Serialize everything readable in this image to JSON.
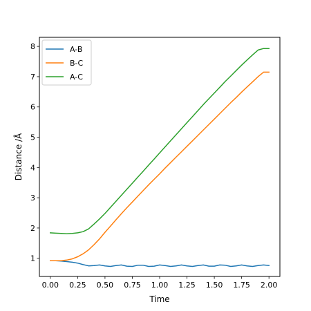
{
  "chart_data": {
    "type": "line",
    "title": "",
    "xlabel": "Time",
    "ylabel": "Distance /Å",
    "xlim": [
      -0.1,
      2.1
    ],
    "ylim": [
      0.4,
      8.3
    ],
    "xticks": [
      0.0,
      0.25,
      0.5,
      0.75,
      1.0,
      1.25,
      1.5,
      1.75,
      2.0
    ],
    "xtick_labels": [
      "0.00",
      "0.25",
      "0.50",
      "0.75",
      "1.00",
      "1.25",
      "1.50",
      "1.75",
      "2.00"
    ],
    "yticks": [
      1,
      2,
      3,
      4,
      5,
      6,
      7,
      8
    ],
    "ytick_labels": [
      "1",
      "2",
      "3",
      "4",
      "5",
      "6",
      "7",
      "8"
    ],
    "grid": false,
    "legend_position": "top-left",
    "series": [
      {
        "name": "A-B",
        "color": "#1f77b4",
        "x": [
          0,
          0.05,
          0.1,
          0.15,
          0.2,
          0.25,
          0.3,
          0.35,
          0.4,
          0.45,
          0.5,
          0.55,
          0.6,
          0.65,
          0.7,
          0.75,
          0.8,
          0.85,
          0.9,
          0.95,
          1.0,
          1.05,
          1.1,
          1.15,
          1.2,
          1.25,
          1.3,
          1.35,
          1.4,
          1.45,
          1.5,
          1.55,
          1.6,
          1.65,
          1.7,
          1.75,
          1.8,
          1.85,
          1.9,
          1.95,
          2.0
        ],
        "y": [
          0.92,
          0.92,
          0.91,
          0.89,
          0.87,
          0.84,
          0.79,
          0.75,
          0.76,
          0.78,
          0.75,
          0.73,
          0.76,
          0.78,
          0.74,
          0.73,
          0.77,
          0.77,
          0.73,
          0.74,
          0.78,
          0.76,
          0.73,
          0.75,
          0.78,
          0.75,
          0.73,
          0.76,
          0.78,
          0.74,
          0.74,
          0.78,
          0.77,
          0.73,
          0.75,
          0.78,
          0.75,
          0.73,
          0.76,
          0.78,
          0.76
        ]
      },
      {
        "name": "B-C",
        "color": "#ff7f0e",
        "x": [
          0,
          0.05,
          0.1,
          0.15,
          0.2,
          0.25,
          0.3,
          0.35,
          0.4,
          0.45,
          0.5,
          0.55,
          0.6,
          0.65,
          0.7,
          0.75,
          0.8,
          0.85,
          0.9,
          0.95,
          1.0,
          1.05,
          1.1,
          1.15,
          1.2,
          1.25,
          1.3,
          1.35,
          1.4,
          1.45,
          1.5,
          1.55,
          1.6,
          1.65,
          1.7,
          1.75,
          1.8,
          1.85,
          1.9,
          1.95,
          2.0
        ],
        "y": [
          0.92,
          0.92,
          0.92,
          0.94,
          0.98,
          1.05,
          1.15,
          1.28,
          1.45,
          1.64,
          1.86,
          2.06,
          2.27,
          2.47,
          2.67,
          2.86,
          3.05,
          3.24,
          3.43,
          3.61,
          3.79,
          3.98,
          4.16,
          4.34,
          4.52,
          4.7,
          4.88,
          5.06,
          5.24,
          5.42,
          5.6,
          5.78,
          5.96,
          6.14,
          6.31,
          6.49,
          6.66,
          6.83,
          7.0,
          7.15,
          7.15
        ]
      },
      {
        "name": "A-C",
        "color": "#2ca02c",
        "x": [
          0,
          0.05,
          0.1,
          0.15,
          0.2,
          0.25,
          0.3,
          0.35,
          0.4,
          0.45,
          0.5,
          0.55,
          0.6,
          0.65,
          0.7,
          0.75,
          0.8,
          0.85,
          0.9,
          0.95,
          1.0,
          1.05,
          1.1,
          1.15,
          1.2,
          1.25,
          1.3,
          1.35,
          1.4,
          1.45,
          1.5,
          1.55,
          1.6,
          1.65,
          1.7,
          1.75,
          1.8,
          1.85,
          1.9,
          1.95,
          2.0
        ],
        "y": [
          1.84,
          1.83,
          1.82,
          1.81,
          1.82,
          1.84,
          1.88,
          1.97,
          2.13,
          2.3,
          2.48,
          2.68,
          2.88,
          3.08,
          3.28,
          3.48,
          3.68,
          3.88,
          4.08,
          4.28,
          4.48,
          4.68,
          4.88,
          5.08,
          5.28,
          5.48,
          5.68,
          5.88,
          6.08,
          6.27,
          6.46,
          6.65,
          6.84,
          7.02,
          7.2,
          7.38,
          7.55,
          7.72,
          7.88,
          7.93,
          7.93
        ]
      }
    ]
  }
}
